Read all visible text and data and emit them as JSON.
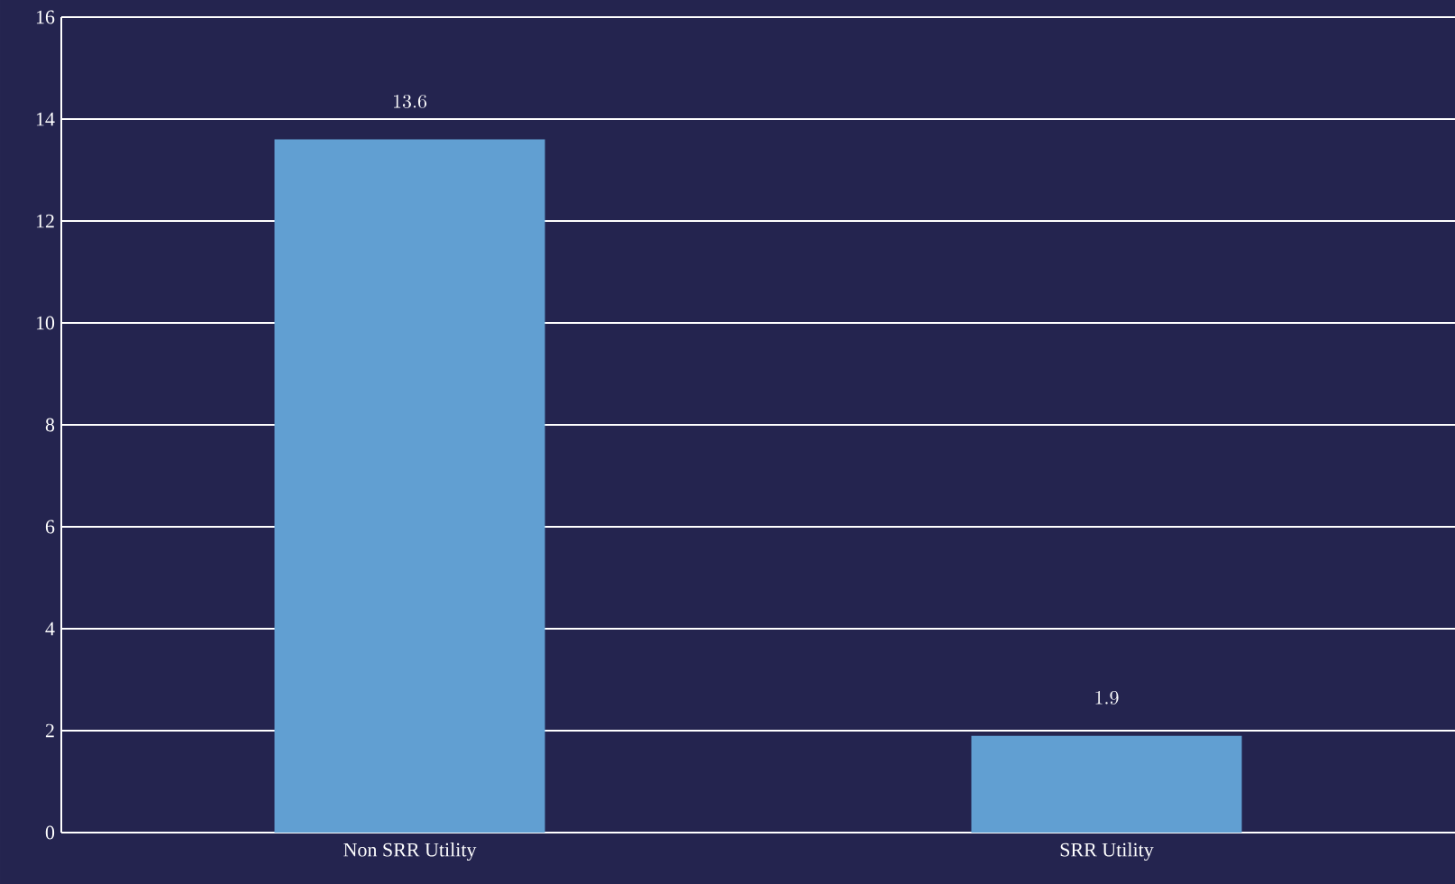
{
  "chart_data": {
    "type": "bar",
    "categories": [
      "Non SRR Utility",
      "SRR Utility"
    ],
    "values": [
      13.6,
      1.9
    ],
    "color": "#619fd2",
    "ylim": [
      0,
      16
    ],
    "yticks": [
      0,
      2,
      4,
      6,
      8,
      10,
      12,
      14,
      16
    ],
    "grid": "y",
    "data_labels": true
  }
}
